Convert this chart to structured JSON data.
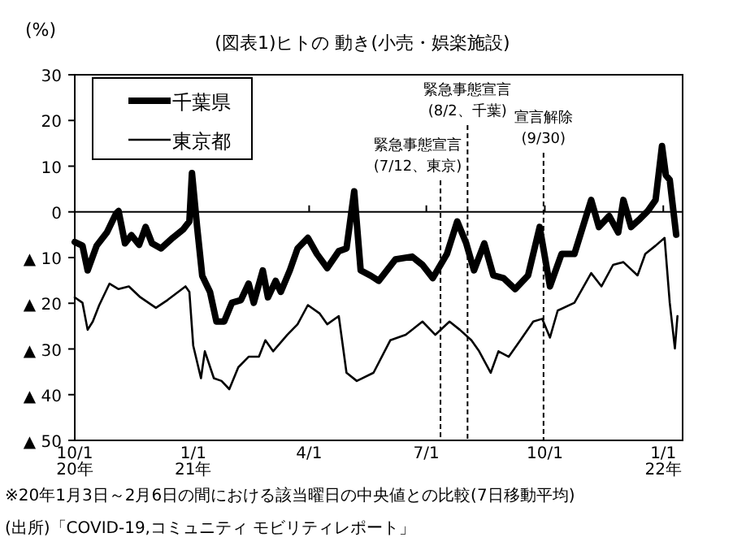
{
  "chart_data": {
    "type": "line",
    "title": "(図表1)ヒトの 動き(小売・娯楽施設)",
    "ylabel": "(%)",
    "xlim": [
      "2020-10-01",
      "2022-01-16"
    ],
    "xticks": [
      {
        "value": "2020-10-01",
        "label": "10/1\n20年"
      },
      {
        "value": "2021-01-01",
        "label": "1/1\n21年"
      },
      {
        "value": "2021-04-01",
        "label": "4/1"
      },
      {
        "value": "2021-07-01",
        "label": "7/1"
      },
      {
        "value": "2021-10-01",
        "label": "10/1"
      },
      {
        "value": "2022-01-01",
        "label": "1/1\n22年"
      }
    ],
    "ylim": [
      -50,
      30
    ],
    "yticks": [
      30,
      20,
      10,
      0,
      {
        "value": -10,
        "label": "▲ 10"
      },
      {
        "value": -20,
        "label": "▲ 20"
      },
      {
        "value": -30,
        "label": "▲ 30"
      },
      {
        "value": -40,
        "label": "▲ 40"
      },
      {
        "value": -50,
        "label": "▲ 50"
      }
    ],
    "grid": false,
    "legend": "top left",
    "marker": "none",
    "line_style": "solid",
    "series": [
      {
        "name": "千葉県",
        "color": "#000000",
        "x": [
          "2020-10-01",
          "2020-10-07",
          "2020-10-11",
          "2020-10-18",
          "2020-10-26",
          "2020-11-02",
          "2020-11-04",
          "2020-11-09",
          "2020-11-14",
          "2020-11-20",
          "2020-11-25",
          "2020-11-30",
          "2020-12-07",
          "2020-12-16",
          "2020-12-24",
          "2020-12-29",
          "2020-12-31",
          "2021-01-04",
          "2021-01-08",
          "2021-01-14",
          "2021-01-19",
          "2021-01-25",
          "2021-01-31",
          "2021-02-07",
          "2021-02-13",
          "2021-02-17",
          "2021-02-24",
          "2021-02-28",
          "2021-03-06",
          "2021-03-10",
          "2021-03-17",
          "2021-03-23",
          "2021-03-31",
          "2021-04-07",
          "2021-04-15",
          "2021-04-24",
          "2021-04-30",
          "2021-05-06",
          "2021-05-11",
          "2021-05-19",
          "2021-05-25",
          "2021-06-07",
          "2021-06-20",
          "2021-06-28",
          "2021-07-06",
          "2021-07-17",
          "2021-07-25",
          "2021-08-01",
          "2021-08-07",
          "2021-08-15",
          "2021-08-22",
          "2021-08-30",
          "2021-09-08",
          "2021-09-18",
          "2021-09-27",
          "2021-10-05",
          "2021-10-14",
          "2021-10-24",
          "2021-11-06",
          "2021-11-12",
          "2021-11-20",
          "2021-11-27",
          "2021-12-01",
          "2021-12-07",
          "2021-12-14",
          "2021-12-20",
          "2021-12-26",
          "2021-12-31",
          "2022-01-03",
          "2022-01-06",
          "2022-01-11"
        ],
        "values": [
          -6.6,
          -7.4,
          -12.8,
          -7.4,
          -4.5,
          -0.4,
          0.2,
          -6.9,
          -5.1,
          -7.2,
          -3.3,
          -6.9,
          -8,
          -5.7,
          -3.9,
          -2.1,
          8.5,
          -3.3,
          -14,
          -17.5,
          -24,
          -24,
          -19.9,
          -19.3,
          -15.7,
          -19.9,
          -12.8,
          -18.7,
          -15.1,
          -17.5,
          -12.8,
          -8,
          -5.7,
          -9.2,
          -12.3,
          -8.6,
          -8,
          4.5,
          -12.8,
          -14,
          -15.1,
          -10.4,
          -9.8,
          -11.6,
          -14.5,
          -9.2,
          -2.1,
          -6.9,
          -12.8,
          -6.9,
          -13.9,
          -14.5,
          -16.9,
          -13.9,
          -3.3,
          -16.3,
          -9.2,
          -9.2,
          2.6,
          -3.3,
          -0.9,
          -4.5,
          2.6,
          -3.3,
          -1.5,
          0.2,
          2.6,
          14.4,
          8,
          7,
          -5
        ]
      },
      {
        "name": "東京都",
        "color": "#000000",
        "x": [
          "2020-10-01",
          "2020-10-07",
          "2020-10-11",
          "2020-10-15",
          "2020-10-20",
          "2020-10-28",
          "2020-11-04",
          "2020-11-12",
          "2020-11-21",
          "2020-12-03",
          "2020-12-12",
          "2020-12-26",
          "2020-12-29",
          "2021-01-01",
          "2021-01-07",
          "2021-01-10",
          "2021-01-17",
          "2021-01-23",
          "2021-01-29",
          "2021-02-05",
          "2021-02-13",
          "2021-02-21",
          "2021-02-26",
          "2021-03-04",
          "2021-03-15",
          "2021-03-23",
          "2021-03-31",
          "2021-04-09",
          "2021-04-15",
          "2021-04-24",
          "2021-04-30",
          "2021-05-08",
          "2021-05-21",
          "2021-06-03",
          "2021-06-15",
          "2021-06-28",
          "2021-07-08",
          "2021-07-19",
          "2021-07-27",
          "2021-08-05",
          "2021-08-11",
          "2021-08-20",
          "2021-08-26",
          "2021-09-03",
          "2021-09-12",
          "2021-09-22",
          "2021-09-29",
          "2021-10-05",
          "2021-10-11",
          "2021-10-24",
          "2021-11-06",
          "2021-11-14",
          "2021-11-23",
          "2021-12-01",
          "2021-12-12",
          "2021-12-18",
          "2021-12-26",
          "2022-01-02",
          "2022-01-06",
          "2022-01-10",
          "2022-01-12"
        ],
        "values": [
          -18.7,
          -19.9,
          -25.8,
          -24,
          -20.4,
          -15.7,
          -16.9,
          -16.3,
          -18.7,
          -21,
          -19.3,
          -16.3,
          -17.5,
          -29.3,
          -36.4,
          -30.5,
          -36.4,
          -37,
          -38.8,
          -34,
          -31.7,
          -31.7,
          -28.1,
          -30.5,
          -26.9,
          -24.6,
          -20.4,
          -22.2,
          -24.6,
          -22.8,
          -35.2,
          -37,
          -35.2,
          -28.1,
          -26.9,
          -24,
          -26.9,
          -24,
          -25.8,
          -28.1,
          -30.5,
          -35.2,
          -30.5,
          -31.7,
          -28.1,
          -24,
          -23.4,
          -27.5,
          -21.6,
          -19.9,
          -13.4,
          -16.3,
          -11.6,
          -11,
          -13.9,
          -9.2,
          -7.4,
          -5.7,
          -19.9,
          -29.9,
          -22.8
        ]
      }
    ],
    "ref_lines": [
      {
        "axis": "y",
        "value": 0,
        "line_style": "solid",
        "color": "#000000"
      },
      {
        "axis": "x",
        "value": "2021-07-12",
        "label": "緊急事態宣言\n(7/12、東京)",
        "line_style": "dashed",
        "color": "#000000"
      },
      {
        "axis": "x",
        "value": "2021-08-02",
        "label": "緊急事態宣言\n(8/2、千葉)",
        "line_style": "dashed",
        "color": "#000000"
      },
      {
        "axis": "x",
        "value": "2021-09-30",
        "label": "宣言解除\n(9/30)",
        "line_style": "dashed",
        "color": "#000000"
      }
    ],
    "annotations": [
      "※20年1月3日～2月6日の間における該当曜日の中央値との比較(7日移動平均)",
      "(出所)「COVID-19,コミュニティ モビリティレポート」"
    ]
  }
}
